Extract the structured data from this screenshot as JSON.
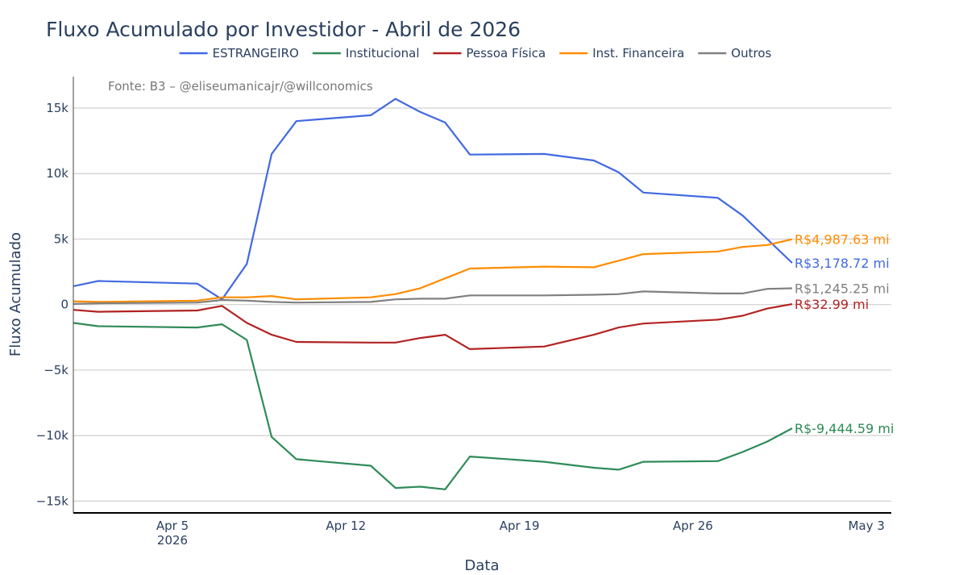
{
  "chart_data": {
    "type": "line",
    "title": "Fluxo Acumulado por Investidor - Abril de 2026",
    "xlabel": "Data",
    "ylabel": "Fluxo Acumulado",
    "source": "Fonte: B3 – @eliseumanicajr/@willconomics",
    "legend_position": "top",
    "grid": true,
    "xlim": [
      "2026-04-01",
      "2026-05-04"
    ],
    "ylim": [
      -15900,
      17400
    ],
    "y_ticks": [
      {
        "value": 15000,
        "label": "15k"
      },
      {
        "value": 10000,
        "label": "10k"
      },
      {
        "value": 5000,
        "label": "5k"
      },
      {
        "value": 0,
        "label": "0"
      },
      {
        "value": -5000,
        "label": "−5k"
      },
      {
        "value": -10000,
        "label": "−10k"
      },
      {
        "value": -15000,
        "label": "−15k"
      }
    ],
    "x_ticks": [
      {
        "date": "2026-04-05",
        "label": "Apr 5",
        "sub": "2026"
      },
      {
        "date": "2026-04-12",
        "label": "Apr 12",
        "sub": ""
      },
      {
        "date": "2026-04-19",
        "label": "Apr 19",
        "sub": ""
      },
      {
        "date": "2026-04-26",
        "label": "Apr 26",
        "sub": ""
      },
      {
        "date": "2026-05-03",
        "label": "May 3",
        "sub": ""
      }
    ],
    "x": [
      "2026-04-01",
      "2026-04-02",
      "2026-04-06",
      "2026-04-07",
      "2026-04-08",
      "2026-04-09",
      "2026-04-10",
      "2026-04-13",
      "2026-04-14",
      "2026-04-15",
      "2026-04-16",
      "2026-04-17",
      "2026-04-20",
      "2026-04-22",
      "2026-04-23",
      "2026-04-24",
      "2026-04-27",
      "2026-04-28",
      "2026-04-29",
      "2026-04-30"
    ],
    "series": [
      {
        "name": "ESTRANGEIRO",
        "color": "#4169e1",
        "end_label": "R$3,178.72 mi",
        "values": [
          1400,
          1800,
          1600,
          400,
          3100,
          11500,
          14000,
          14450,
          15700,
          14700,
          13900,
          11450,
          11500,
          11000,
          10100,
          8550,
          8150,
          6800,
          5000,
          3178.72
        ]
      },
      {
        "name": "Institucional",
        "color": "#2e8b57",
        "end_label": "R$-9,444.59 mi",
        "values": [
          -1400,
          -1650,
          -1750,
          -1500,
          -2700,
          -10100,
          -11800,
          -12300,
          -14000,
          -13900,
          -14100,
          -11600,
          -12000,
          -12450,
          -12600,
          -12000,
          -11950,
          -11250,
          -10450,
          -9444.59
        ]
      },
      {
        "name": "Pessoa Física",
        "color": "#b22222",
        "end_label": "R$32.99 mi",
        "values": [
          -400,
          -550,
          -450,
          -100,
          -1400,
          -2300,
          -2850,
          -2900,
          -2900,
          -2550,
          -2300,
          -3400,
          -3200,
          -2300,
          -1750,
          -1450,
          -1150,
          -850,
          -300,
          32.99
        ]
      },
      {
        "name": "Inst. Financeira",
        "color": "#ff8c00",
        "end_label": "R$4,987.63 mi",
        "values": [
          250,
          200,
          300,
          550,
          550,
          650,
          400,
          550,
          800,
          1250,
          2000,
          2750,
          2900,
          2850,
          3350,
          3850,
          4050,
          4400,
          4550,
          4987.63
        ]
      },
      {
        "name": "Outros",
        "color": "#808080",
        "end_label": "R$1,245.25 mi",
        "values": [
          50,
          100,
          150,
          350,
          300,
          200,
          150,
          200,
          400,
          450,
          450,
          700,
          700,
          750,
          800,
          1000,
          850,
          850,
          1200,
          1245.25
        ]
      }
    ]
  }
}
